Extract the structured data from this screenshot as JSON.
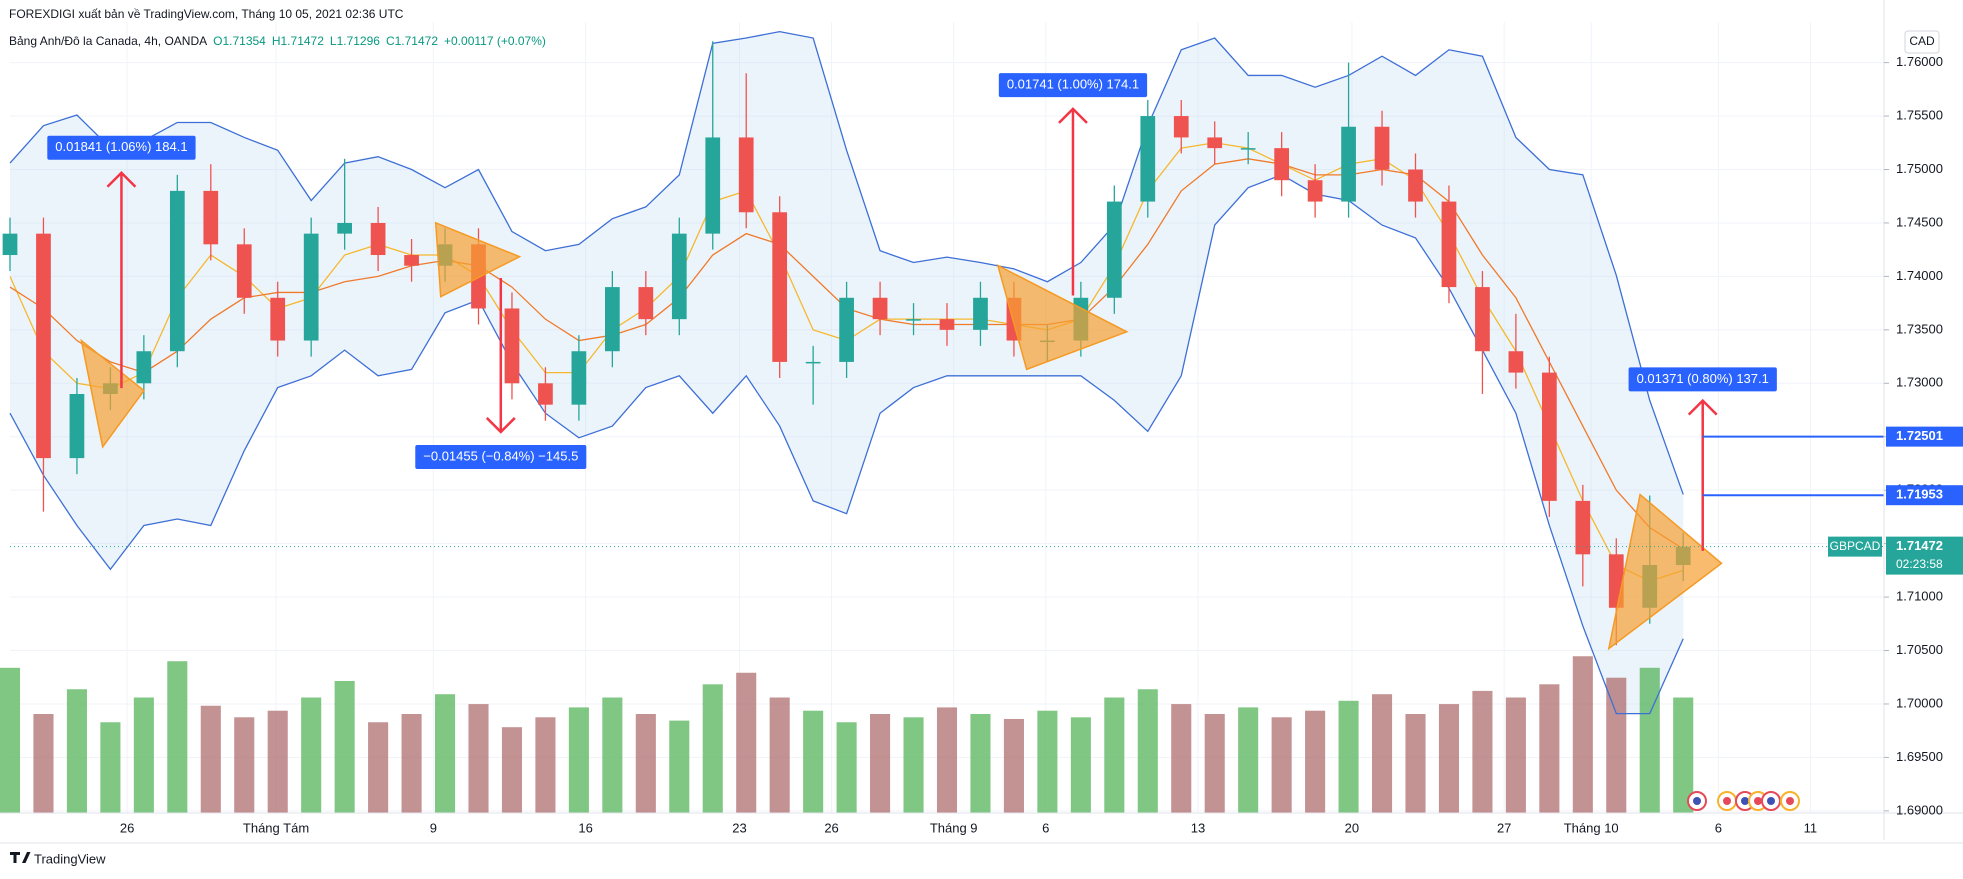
{
  "header": {
    "publisher": "FOREXDIGI xuất bản về TradingView.com, Tháng 10 05, 2021 02:36 UTC",
    "symbol": "Bảng Anh/Đô la Canada, 4h, OANDA",
    "ohlc": [
      "O1.71354",
      "H1.71472",
      "L1.71296",
      "C1.71472"
    ],
    "change": "+0.00117 (+0.07%)"
  },
  "footer": "TradingView",
  "chart_data": {
    "type": "candlestick",
    "currency": "CAD",
    "ticker": "GBPCAD",
    "countdown": "02:23:58",
    "last": 1.71472,
    "levels": [
      1.72501,
      1.71953
    ],
    "measurements": [
      "0.01841 (1.06%) 184.1",
      "−0.01455 (−0.84%) −145.5",
      "0.01741 (1.00%) 174.1",
      "0.01371 (0.80%) 137.1"
    ],
    "up_color": "#26a69a",
    "down_color": "#ef5350",
    "grid": true,
    "xlim": [
      0,
      112
    ],
    "ylim": [
      1.6898,
      1.7638
    ],
    "vlim": [
      0,
      100
    ],
    "xticks": [
      {
        "value": 7,
        "label": "26"
      },
      {
        "value": 15.9,
        "label": "Tháng Tám"
      },
      {
        "value": 25.3,
        "label": "9"
      },
      {
        "value": 34.4,
        "label": "16"
      },
      {
        "value": 43.6,
        "label": "23"
      },
      {
        "value": 49.1,
        "label": "26"
      },
      {
        "value": 56.4,
        "label": "Tháng 9"
      },
      {
        "value": 61.9,
        "label": "6"
      },
      {
        "value": 71.0,
        "label": "13"
      },
      {
        "value": 80.2,
        "label": "20"
      },
      {
        "value": 89.3,
        "label": "27"
      },
      {
        "value": 94.5,
        "label": "Tháng 10"
      },
      {
        "value": 102.1,
        "label": "6"
      },
      {
        "value": 107.6,
        "label": "11"
      }
    ],
    "yticks": [
      {
        "value": 1.69,
        "label": "1.69000"
      },
      {
        "value": 1.695,
        "label": "1.69500"
      },
      {
        "value": 1.7,
        "label": "1.70000"
      },
      {
        "value": 1.705,
        "label": "1.70500"
      },
      {
        "value": 1.71,
        "label": "1.71000"
      },
      {
        "value": 1.715,
        "label": "1.71500"
      },
      {
        "value": 1.72,
        "label": "1.72000"
      },
      {
        "value": 1.725,
        "label": "1.72500"
      },
      {
        "value": 1.73,
        "label": "1.73000"
      },
      {
        "value": 1.735,
        "label": "1.73500"
      },
      {
        "value": 1.74,
        "label": "1.74000"
      },
      {
        "value": 1.745,
        "label": "1.74500"
      },
      {
        "value": 1.75,
        "label": "1.75000"
      },
      {
        "value": 1.755,
        "label": "1.75500"
      },
      {
        "value": 1.76,
        "label": "1.76000"
      }
    ],
    "x": [
      0,
      2,
      4,
      6,
      8,
      10,
      12,
      14,
      16,
      18,
      20,
      22,
      24,
      26,
      28,
      30,
      32,
      34,
      36,
      38,
      40,
      42,
      44,
      46,
      48,
      50,
      52,
      54,
      56,
      58,
      60,
      62,
      64,
      66,
      68,
      70,
      72,
      74,
      76,
      78,
      80,
      82,
      84,
      86,
      88,
      90,
      92,
      94,
      96,
      98,
      100
    ],
    "open": [
      1.742,
      1.744,
      1.723,
      1.729,
      1.73,
      1.733,
      1.748,
      1.743,
      1.738,
      1.734,
      1.744,
      1.745,
      1.742,
      1.741,
      1.743,
      1.737,
      1.73,
      1.728,
      1.733,
      1.739,
      1.736,
      1.744,
      1.753,
      1.746,
      1.732,
      1.732,
      1.738,
      1.736,
      1.736,
      1.735,
      1.738,
      1.734,
      1.734,
      1.738,
      1.747,
      1.755,
      1.753,
      1.752,
      1.752,
      1.749,
      1.747,
      1.754,
      1.75,
      1.747,
      1.739,
      1.733,
      1.731,
      1.719,
      1.714,
      1.709,
      1.713
    ],
    "high": [
      1.7455,
      1.7455,
      1.7305,
      1.7315,
      1.7345,
      1.7495,
      1.7505,
      1.7445,
      1.7395,
      1.7455,
      1.751,
      1.7465,
      1.7435,
      1.7445,
      1.7445,
      1.7385,
      1.7315,
      1.7345,
      1.7405,
      1.7405,
      1.7455,
      1.762,
      1.759,
      1.7475,
      1.7335,
      1.7395,
      1.7395,
      1.7375,
      1.7375,
      1.7395,
      1.7395,
      1.7355,
      1.7395,
      1.7485,
      1.7565,
      1.7565,
      1.7545,
      1.7535,
      1.7535,
      1.7505,
      1.76,
      1.7555,
      1.7515,
      1.7485,
      1.7405,
      1.7365,
      1.7325,
      1.7205,
      1.7155,
      1.7195,
      1.716
    ],
    "low": [
      1.7405,
      1.718,
      1.7215,
      1.7275,
      1.7285,
      1.7315,
      1.7415,
      1.7365,
      1.7325,
      1.7325,
      1.7425,
      1.7405,
      1.7395,
      1.7395,
      1.7355,
      1.7285,
      1.7265,
      1.7265,
      1.7315,
      1.7345,
      1.7345,
      1.7425,
      1.7445,
      1.7305,
      1.728,
      1.7305,
      1.7345,
      1.7345,
      1.7335,
      1.7335,
      1.7325,
      1.732,
      1.7325,
      1.7365,
      1.7455,
      1.7515,
      1.7505,
      1.7505,
      1.7475,
      1.7455,
      1.7455,
      1.7485,
      1.7455,
      1.7375,
      1.729,
      1.7295,
      1.7175,
      1.711,
      1.7055,
      1.7075,
      1.7115
    ],
    "close": [
      1.744,
      1.723,
      1.729,
      1.73,
      1.733,
      1.748,
      1.743,
      1.738,
      1.734,
      1.744,
      1.745,
      1.742,
      1.741,
      1.743,
      1.737,
      1.73,
      1.728,
      1.733,
      1.739,
      1.736,
      1.744,
      1.753,
      1.746,
      1.732,
      1.732,
      1.738,
      1.736,
      1.736,
      1.735,
      1.738,
      1.734,
      1.734,
      1.738,
      1.747,
      1.755,
      1.753,
      1.752,
      1.752,
      1.749,
      1.747,
      1.754,
      1.75,
      1.747,
      1.739,
      1.733,
      1.731,
      1.719,
      1.714,
      1.709,
      1.713,
      1.7147
    ],
    "volume": [
      88,
      60,
      75,
      55,
      70,
      92,
      65,
      58,
      62,
      70,
      80,
      55,
      60,
      72,
      66,
      52,
      58,
      64,
      70,
      60,
      56,
      78,
      85,
      70,
      62,
      55,
      60,
      58,
      64,
      60,
      57,
      62,
      58,
      70,
      75,
      66,
      60,
      64,
      58,
      62,
      68,
      72,
      60,
      66,
      74,
      70,
      78,
      95,
      82,
      88,
      70
    ],
    "volume_colors": {
      "up": "rgba(76,175,80,0.7)",
      "down": "rgba(170,100,100,0.7)"
    },
    "bands": {
      "color": "#3d6fd6",
      "fill": "rgba(180,210,240,0.25)",
      "upper": [
        1.7506,
        1.7541,
        1.7551,
        1.752,
        1.7527,
        1.7544,
        1.7544,
        1.753,
        1.7518,
        1.7471,
        1.7506,
        1.7512,
        1.75,
        1.7483,
        1.75,
        1.7442,
        1.7424,
        1.743,
        1.7454,
        1.7465,
        1.7495,
        1.7618,
        1.7623,
        1.7629,
        1.7623,
        1.7518,
        1.7424,
        1.7413,
        1.7418,
        1.7413,
        1.7407,
        1.7395,
        1.7413,
        1.7448,
        1.7541,
        1.7612,
        1.7623,
        1.7588,
        1.7588,
        1.7577,
        1.7588,
        1.7606,
        1.7588,
        1.7612,
        1.7606,
        1.753,
        1.75,
        1.7495,
        1.7401,
        1.7284,
        1.7196
      ],
      "lower": [
        1.7272,
        1.7214,
        1.7167,
        1.7126,
        1.7167,
        1.7173,
        1.7167,
        1.7237,
        1.7296,
        1.7307,
        1.7331,
        1.7307,
        1.7313,
        1.7366,
        1.7378,
        1.7319,
        1.7272,
        1.7249,
        1.726,
        1.7296,
        1.7307,
        1.7272,
        1.7307,
        1.726,
        1.719,
        1.7178,
        1.7272,
        1.7296,
        1.7307,
        1.7307,
        1.7307,
        1.7307,
        1.7307,
        1.7284,
        1.7255,
        1.7307,
        1.7448,
        1.7483,
        1.7495,
        1.7477,
        1.7471,
        1.7448,
        1.7436,
        1.7389,
        1.7331,
        1.7272,
        1.7167,
        1.7073,
        1.6991,
        1.6991,
        1.7061
      ]
    },
    "ma": [
      {
        "color": "#f5b82e",
        "values": [
          1.74,
          1.733,
          1.73,
          1.7295,
          1.731,
          1.738,
          1.742,
          1.74,
          1.737,
          1.738,
          1.742,
          1.743,
          1.742,
          1.742,
          1.74,
          1.735,
          1.731,
          1.731,
          1.735,
          1.737,
          1.74,
          1.747,
          1.748,
          1.742,
          1.735,
          1.734,
          1.736,
          1.736,
          1.736,
          1.736,
          1.7355,
          1.735,
          1.736,
          1.741,
          1.748,
          1.752,
          1.7525,
          1.752,
          1.7505,
          1.749,
          1.7505,
          1.751,
          1.749,
          1.744,
          1.738,
          1.733,
          1.726,
          1.719,
          1.713,
          1.7115,
          1.7125
        ]
      },
      {
        "color": "#f07a2a",
        "values": [
          1.739,
          1.737,
          1.734,
          1.732,
          1.731,
          1.733,
          1.736,
          1.738,
          1.7385,
          1.7385,
          1.7395,
          1.74,
          1.741,
          1.7415,
          1.741,
          1.739,
          1.736,
          1.734,
          1.7345,
          1.7355,
          1.738,
          1.742,
          1.744,
          1.743,
          1.74,
          1.737,
          1.736,
          1.7355,
          1.7355,
          1.7355,
          1.7355,
          1.7355,
          1.736,
          1.739,
          1.743,
          1.748,
          1.7505,
          1.751,
          1.7505,
          1.7495,
          1.7495,
          1.75,
          1.7495,
          1.747,
          1.742,
          1.738,
          1.732,
          1.726,
          1.72,
          1.7165,
          1.7145
        ]
      }
    ]
  }
}
